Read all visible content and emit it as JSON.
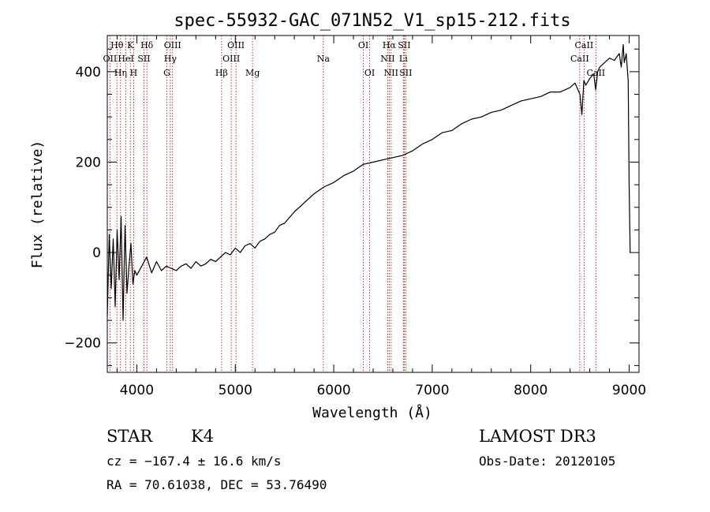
{
  "chart_data": {
    "type": "line",
    "title": "spec-55932-GAC_071N52_V1_sp15-212.fits",
    "xlabel": "Wavelength (Å)",
    "ylabel": "Flux (relative)",
    "xlim": [
      3700,
      9100
    ],
    "ylim": [
      -265,
      480
    ],
    "xticks": [
      4000,
      5000,
      6000,
      7000,
      8000,
      9000
    ],
    "yticks": [
      -200,
      0,
      200,
      400
    ],
    "series": [
      {
        "name": "flux",
        "x": [
          3700,
          3720,
          3740,
          3760,
          3780,
          3800,
          3820,
          3840,
          3860,
          3880,
          3900,
          3920,
          3940,
          3960,
          3980,
          4000,
          4050,
          4100,
          4150,
          4200,
          4250,
          4300,
          4350,
          4400,
          4450,
          4500,
          4550,
          4600,
          4650,
          4700,
          4750,
          4800,
          4850,
          4900,
          4950,
          5000,
          5050,
          5100,
          5150,
          5200,
          5250,
          5300,
          5350,
          5400,
          5450,
          5500,
          5600,
          5700,
          5800,
          5900,
          6000,
          6100,
          6200,
          6300,
          6400,
          6500,
          6600,
          6700,
          6800,
          6900,
          7000,
          7100,
          7200,
          7300,
          7400,
          7500,
          7600,
          7700,
          7800,
          7900,
          8000,
          8100,
          8200,
          8300,
          8400,
          8450,
          8500,
          8520,
          8540,
          8560,
          8600,
          8640,
          8660,
          8680,
          8700,
          8750,
          8800,
          8850,
          8900,
          8920,
          8940,
          8950,
          8970,
          8990,
          9000,
          9010
        ],
        "y": [
          -140,
          40,
          -80,
          30,
          -120,
          50,
          -60,
          80,
          -150,
          60,
          -90,
          -30,
          20,
          -70,
          -40,
          -50,
          -30,
          -10,
          -45,
          -20,
          -40,
          -30,
          -35,
          -40,
          -30,
          -25,
          -35,
          -20,
          -30,
          -25,
          -15,
          -20,
          -10,
          0,
          -5,
          10,
          0,
          15,
          20,
          10,
          25,
          30,
          40,
          45,
          60,
          65,
          90,
          110,
          130,
          145,
          155,
          170,
          180,
          195,
          200,
          205,
          210,
          215,
          225,
          240,
          250,
          265,
          270,
          285,
          295,
          300,
          310,
          315,
          325,
          335,
          340,
          345,
          355,
          355,
          365,
          375,
          350,
          305,
          380,
          370,
          385,
          395,
          360,
          400,
          410,
          420,
          430,
          425,
          440,
          410,
          460,
          420,
          440,
          380,
          150,
          0
        ]
      }
    ],
    "lines": [
      {
        "name": "OII",
        "wavelength": 3727,
        "label_row": 2
      },
      {
        "name": "Hθ",
        "wavelength": 3798,
        "label_row": 1
      },
      {
        "name": "Hη",
        "wavelength": 3835,
        "label_row": 3
      },
      {
        "name": "HeI",
        "wavelength": 3889,
        "label_row": 2
      },
      {
        "name": "K",
        "wavelength": 3934,
        "label_row": 1
      },
      {
        "name": "H",
        "wavelength": 3968,
        "label_row": 3
      },
      {
        "name": "SII",
        "wavelength": 4072,
        "label_row": 2
      },
      {
        "name": "Hδ",
        "wavelength": 4102,
        "label_row": 1
      },
      {
        "name": "G",
        "wavelength": 4305,
        "label_row": 3
      },
      {
        "name": "Hγ",
        "wavelength": 4340,
        "label_row": 2
      },
      {
        "name": "OIII",
        "wavelength": 4363,
        "label_row": 1
      },
      {
        "name": "Hβ",
        "wavelength": 4861,
        "label_row": 3
      },
      {
        "name": "OIII",
        "wavelength": 4959,
        "label_row": 2
      },
      {
        "name": "OIII",
        "wavelength": 5007,
        "label_row": 1
      },
      {
        "name": "Mg",
        "wavelength": 5175,
        "label_row": 3
      },
      {
        "name": "Na",
        "wavelength": 5894,
        "label_row": 2
      },
      {
        "name": "OI",
        "wavelength": 6300,
        "label_row": 1
      },
      {
        "name": "OI",
        "wavelength": 6364,
        "label_row": 3
      },
      {
        "name": "NII",
        "wavelength": 6548,
        "label_row": 2
      },
      {
        "name": "Hα",
        "wavelength": 6563,
        "label_row": 1
      },
      {
        "name": "NII",
        "wavelength": 6583,
        "label_row": 3
      },
      {
        "name": "Li",
        "wavelength": 6707,
        "label_row": 2
      },
      {
        "name": "SII",
        "wavelength": 6716,
        "label_row": 1
      },
      {
        "name": "SII",
        "wavelength": 6731,
        "label_row": 3
      },
      {
        "name": "CaII",
        "wavelength": 8498,
        "label_row": 2
      },
      {
        "name": "CaII",
        "wavelength": 8542,
        "label_row": 1
      },
      {
        "name": "CaII",
        "wavelength": 8662,
        "label_row": 3
      }
    ]
  },
  "info": {
    "object_class": "STAR",
    "subclass": "K4",
    "survey": "LAMOST DR3",
    "cz": "cz = −167.4 ± 16.6 km/s",
    "obs_date": "Obs-Date: 20120105",
    "coords": "RA =  70.61038, DEC =  53.76490"
  },
  "colors": {
    "spectrum": "#000000",
    "line_marker": "#aa0000",
    "axes": "#000000"
  }
}
